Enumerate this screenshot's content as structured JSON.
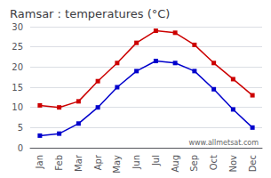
{
  "chart_data": {
    "type": "line",
    "title": "Ramsar : temperatures (°C)",
    "categories": [
      "Jan",
      "Feb",
      "Mar",
      "Apr",
      "May",
      "Jun",
      "Jul",
      "Aug",
      "Sep",
      "Oct",
      "Nov",
      "Dec"
    ],
    "series": [
      {
        "color": "#cc0000",
        "marker": "square",
        "values": [
          10.5,
          10.0,
          11.5,
          16.5,
          21.0,
          26.0,
          29.0,
          28.5,
          25.5,
          21.0,
          17.0,
          13.0
        ]
      },
      {
        "color": "#0000cc",
        "marker": "square",
        "values": [
          3.0,
          3.5,
          6.0,
          10.0,
          15.0,
          19.0,
          21.5,
          21.0,
          19.0,
          14.5,
          9.5,
          5.0
        ]
      }
    ],
    "ylim": [
      0,
      30
    ],
    "yticks": [
      0,
      5,
      10,
      15,
      20,
      25,
      30
    ],
    "grid": true,
    "annotations": [
      "www.allmetsat.com"
    ]
  }
}
